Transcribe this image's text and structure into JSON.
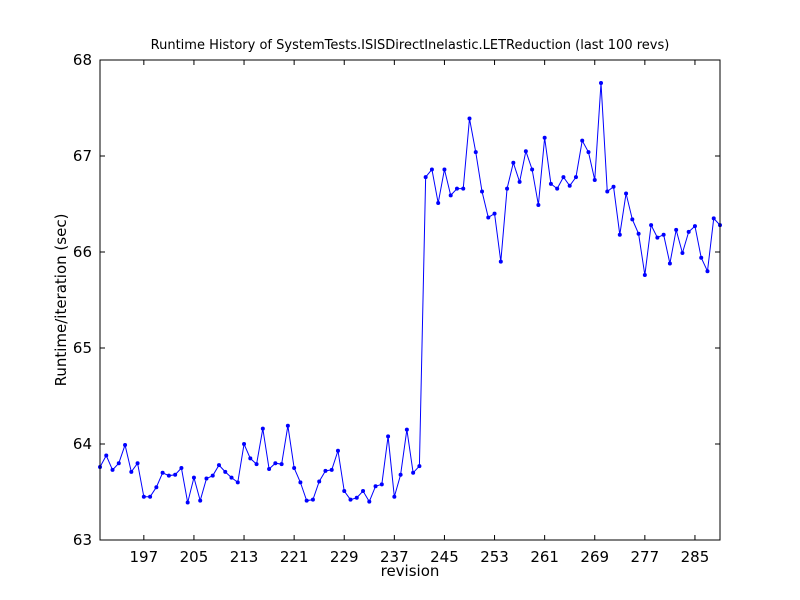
{
  "chart_data": {
    "type": "line",
    "title": "Runtime History of SystemTests.ISISDirectInelastic.LETReduction (last 100 revs)",
    "x_label": "revision",
    "y_label": "Runtime/iteration (sec)",
    "x": [
      190,
      191,
      192,
      193,
      194,
      195,
      196,
      197,
      198,
      199,
      200,
      201,
      202,
      203,
      204,
      205,
      206,
      207,
      208,
      209,
      210,
      211,
      212,
      213,
      214,
      215,
      216,
      217,
      218,
      219,
      220,
      221,
      222,
      223,
      224,
      225,
      226,
      227,
      228,
      229,
      230,
      231,
      232,
      233,
      234,
      235,
      236,
      237,
      238,
      239,
      240,
      241,
      242,
      243,
      244,
      245,
      246,
      247,
      248,
      249,
      250,
      251,
      252,
      253,
      254,
      255,
      256,
      257,
      258,
      259,
      260,
      261,
      262,
      263,
      264,
      265,
      266,
      267,
      268,
      269,
      270,
      271,
      272,
      273,
      274,
      275,
      276,
      277,
      278,
      279,
      280,
      281,
      282,
      283,
      284,
      285,
      286,
      287,
      288,
      289
    ],
    "series": [
      {
        "name": "runtime",
        "color": "#0000ff",
        "values": [
          63.76,
          63.88,
          63.73,
          63.8,
          63.99,
          63.71,
          63.8,
          63.45,
          63.45,
          63.55,
          63.7,
          63.67,
          63.68,
          63.75,
          63.39,
          63.65,
          63.41,
          63.64,
          63.67,
          63.78,
          63.71,
          63.65,
          63.6,
          64.0,
          63.85,
          63.79,
          64.16,
          63.74,
          63.8,
          63.79,
          64.19,
          63.75,
          63.6,
          63.41,
          63.42,
          63.61,
          63.72,
          63.73,
          63.93,
          63.51,
          63.42,
          63.44,
          63.51,
          63.4,
          63.56,
          63.58,
          64.08,
          63.45,
          63.68,
          64.15,
          63.7,
          63.77,
          66.78,
          66.86,
          66.51,
          66.86,
          66.59,
          66.66,
          66.66,
          67.39,
          67.04,
          66.63,
          66.36,
          66.4,
          65.9,
          66.66,
          66.93,
          66.73,
          67.05,
          66.86,
          66.49,
          67.19,
          66.71,
          66.66,
          66.78,
          66.69,
          66.78,
          67.16,
          67.04,
          66.75,
          67.76,
          66.63,
          66.68,
          66.18,
          66.61,
          66.34,
          66.19,
          65.76,
          66.28,
          66.15,
          66.18,
          65.88,
          66.23,
          65.99,
          66.21,
          66.27,
          65.94,
          65.8,
          66.35,
          66.28
        ]
      }
    ],
    "xlim": [
      190,
      289
    ],
    "xticks": [
      197,
      205,
      213,
      221,
      229,
      237,
      245,
      253,
      261,
      269,
      277,
      285
    ],
    "ylim": [
      63,
      68
    ],
    "yticks": [
      63,
      64,
      65,
      66,
      67,
      68
    ],
    "grid": false
  }
}
